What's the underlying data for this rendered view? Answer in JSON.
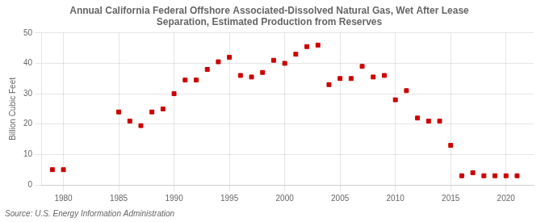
{
  "chart_data": {
    "type": "scatter",
    "title": "Annual California Federal Offshore Associated-Dissolved Natural Gas, Wet After Lease\nSeparation, Estimated Production from Reserves",
    "ylabel": "Billion Cubic Feet",
    "annotation": "Source: U.S. Energy Information Administration",
    "x": [
      1979,
      1980,
      1985,
      1986,
      1987,
      1988,
      1989,
      1990,
      1991,
      1992,
      1993,
      1994,
      1995,
      1996,
      1997,
      1998,
      1999,
      2000,
      2001,
      2002,
      2003,
      2004,
      2005,
      2006,
      2007,
      2008,
      2009,
      2010,
      2011,
      2012,
      2013,
      2014,
      2015,
      2016,
      2017,
      2018,
      2019,
      2020,
      2021
    ],
    "values": [
      5.0,
      5.0,
      24.0,
      21.0,
      19.5,
      24.0,
      25.0,
      30.0,
      34.5,
      34.5,
      38.0,
      40.5,
      42.0,
      36.0,
      35.5,
      37.0,
      41.0,
      40.0,
      43.0,
      45.5,
      46.0,
      33.0,
      35.0,
      35.0,
      39.0,
      35.5,
      36.0,
      28.0,
      31.0,
      22.0,
      21.0,
      21.0,
      13.0,
      3.0,
      4.0,
      3.0,
      3.0,
      3.0,
      3.0
    ],
    "color": "#cc0000",
    "marker": "square",
    "xlim": [
      1978,
      2022.5
    ],
    "xticks": [
      1980,
      1985,
      1990,
      1995,
      2000,
      2005,
      2010,
      2015,
      2020
    ],
    "ylim": [
      0,
      50
    ],
    "yticks": [
      0,
      10,
      20,
      30,
      40,
      50
    ],
    "grid": true
  }
}
